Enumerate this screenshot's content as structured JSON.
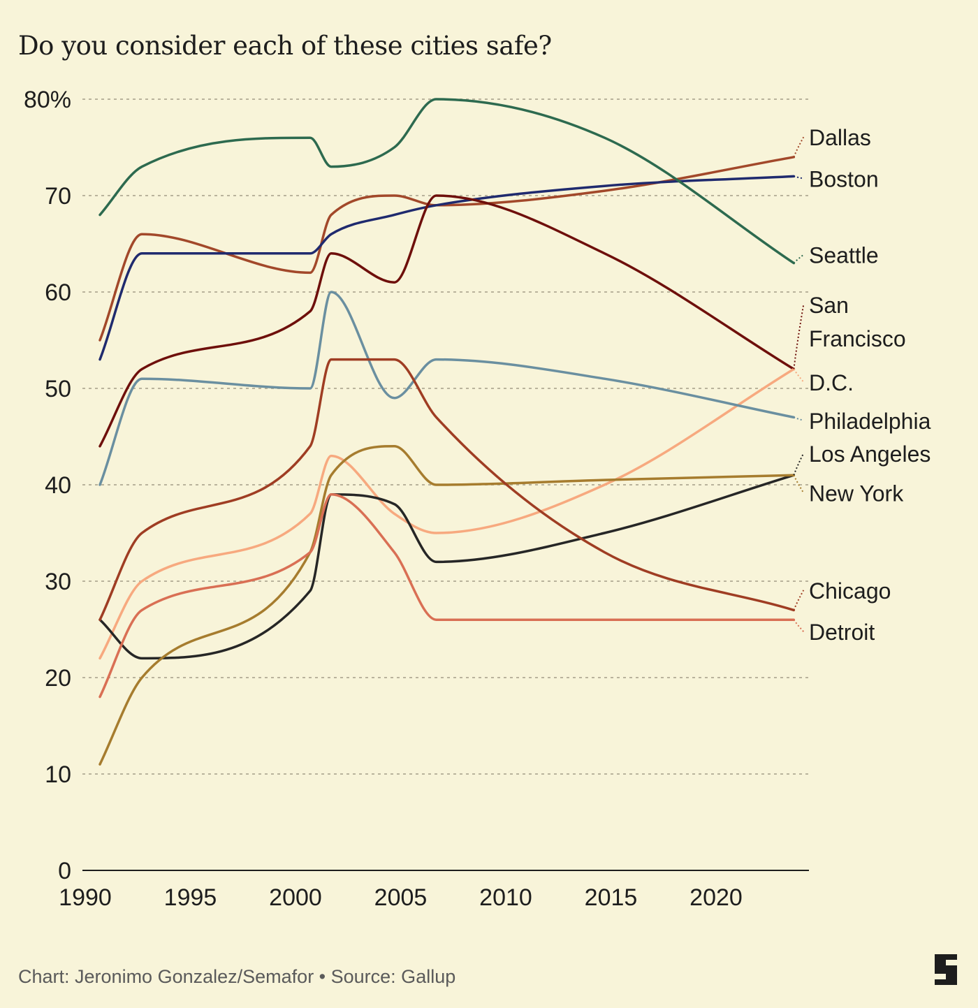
{
  "title": "Do you consider each of these cities safe?",
  "credit": "Chart: Jeronimo Gonzalez/Semafor • Source: Gallup",
  "logo": {
    "name": "semafor-logo-icon",
    "color": "#1d1d1d"
  },
  "chart_data": {
    "type": "line",
    "x_ticks": [
      1990,
      1995,
      2000,
      2005,
      2010,
      2015,
      2020
    ],
    "y_ticks": [
      0,
      10,
      20,
      30,
      40,
      50,
      60,
      70,
      80
    ],
    "y_tick_labels": [
      "0",
      "10",
      "20",
      "30",
      "40",
      "50",
      "60",
      "70",
      "80%"
    ],
    "xlim": [
      1990,
      2024
    ],
    "ylim": [
      0,
      80
    ],
    "grid": "horizontal dashed",
    "legend": "end-of-line labels",
    "series": [
      {
        "name": "Dallas",
        "color": "#a2482a",
        "label_value": 75.2,
        "points": [
          [
            1991,
            55
          ],
          [
            1993,
            66
          ],
          [
            2001,
            62
          ],
          [
            2002,
            68
          ],
          [
            2005,
            70
          ],
          [
            2007,
            69
          ],
          [
            2015,
            70.5
          ],
          [
            2024,
            74
          ]
        ]
      },
      {
        "name": "Boston",
        "color": "#1f2a6e",
        "label_value": 70.9,
        "points": [
          [
            1991,
            53
          ],
          [
            1993,
            64
          ],
          [
            2001,
            64
          ],
          [
            2002,
            66
          ],
          [
            2005,
            68
          ],
          [
            2007,
            69
          ],
          [
            2015,
            71
          ],
          [
            2024,
            72
          ]
        ]
      },
      {
        "name": "Seattle",
        "color": "#2d6a4f",
        "label_value": 63,
        "points": [
          [
            1991,
            68
          ],
          [
            1993,
            73
          ],
          [
            2001,
            76
          ],
          [
            2002,
            73
          ],
          [
            2005,
            75
          ],
          [
            2007,
            80
          ],
          [
            2015,
            76
          ],
          [
            2024,
            63
          ]
        ]
      },
      {
        "name": "San Francisco",
        "color": "#6e0f0b",
        "label_value": 56.1,
        "label_lines": [
          "San",
          "Francisco"
        ],
        "points": [
          [
            1991,
            44
          ],
          [
            1993,
            52
          ],
          [
            2001,
            58
          ],
          [
            2002,
            64
          ],
          [
            2005,
            61
          ],
          [
            2007,
            70
          ],
          [
            2015,
            64
          ],
          [
            2024,
            52
          ]
        ]
      },
      {
        "name": "D.C.",
        "color": "#f7a97f",
        "label_value": 49.8,
        "points": [
          [
            1991,
            22
          ],
          [
            1993,
            30
          ],
          [
            2001,
            37
          ],
          [
            2002,
            43
          ],
          [
            2005,
            37
          ],
          [
            2007,
            35
          ],
          [
            2015,
            40
          ],
          [
            2024,
            52
          ]
        ]
      },
      {
        "name": "Philadelphia",
        "color": "#6a8fa0",
        "label_value": 45.8,
        "points": [
          [
            1991,
            40
          ],
          [
            1993,
            51
          ],
          [
            2001,
            50
          ],
          [
            2002,
            60
          ],
          [
            2005,
            49
          ],
          [
            2007,
            53
          ],
          [
            2015,
            51
          ],
          [
            2024,
            47
          ]
        ]
      },
      {
        "name": "Los Angeles",
        "color": "#262626",
        "label_value": 42.4,
        "points": [
          [
            1991,
            26
          ],
          [
            1993,
            22
          ],
          [
            2001,
            29
          ],
          [
            2002,
            39
          ],
          [
            2005,
            38
          ],
          [
            2007,
            32
          ],
          [
            2015,
            35
          ],
          [
            2024,
            41
          ]
        ]
      },
      {
        "name": "New York",
        "color": "#a67c2e",
        "label_value": 38.3,
        "points": [
          [
            1991,
            11
          ],
          [
            1993,
            20
          ],
          [
            2001,
            33
          ],
          [
            2002,
            41
          ],
          [
            2005,
            44
          ],
          [
            2007,
            40
          ],
          [
            2015,
            40.5
          ],
          [
            2024,
            41
          ]
        ]
      },
      {
        "name": "Chicago",
        "color": "#9f3d23",
        "label_value": 28.2,
        "points": [
          [
            1991,
            26
          ],
          [
            1993,
            35
          ],
          [
            2001,
            44
          ],
          [
            2002,
            53
          ],
          [
            2005,
            53
          ],
          [
            2007,
            47
          ],
          [
            2015,
            33
          ],
          [
            2024,
            27
          ]
        ]
      },
      {
        "name": "Detroit",
        "color": "#d96f54",
        "label_value": 23.9,
        "points": [
          [
            1991,
            18
          ],
          [
            1993,
            27
          ],
          [
            2001,
            33
          ],
          [
            2002,
            39
          ],
          [
            2005,
            33
          ],
          [
            2007,
            26
          ],
          [
            2015,
            26
          ],
          [
            2024,
            26
          ]
        ]
      }
    ]
  }
}
